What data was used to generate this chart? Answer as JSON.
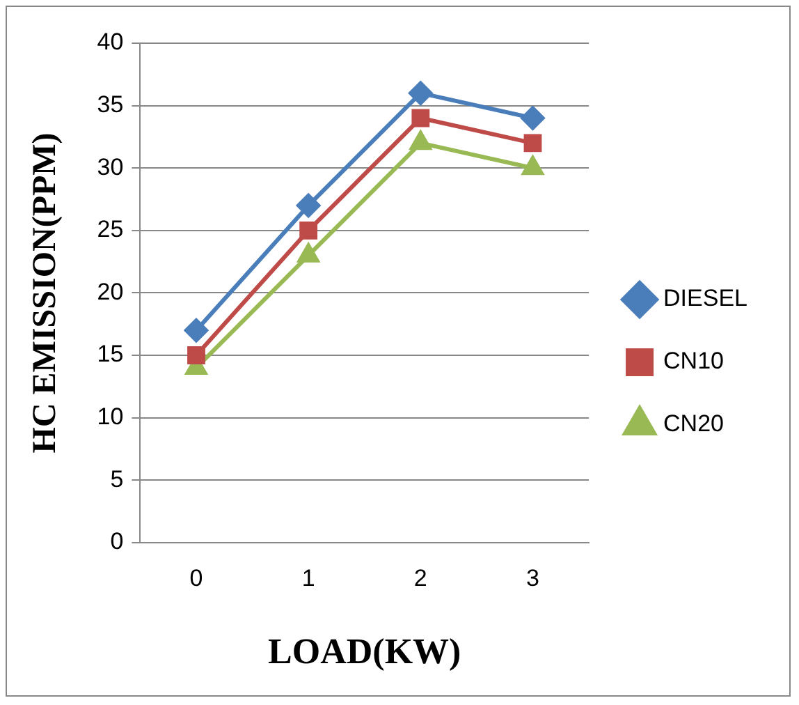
{
  "chart_data": {
    "type": "line",
    "xlabel": "LOAD(KW)",
    "ylabel": "HC EMISSION(PPM)",
    "categories": [
      "0",
      "1",
      "2",
      "3"
    ],
    "series": [
      {
        "name": "DIESEL",
        "color": "#4a7ebb",
        "marker": "diamond",
        "values": [
          17,
          27,
          36,
          34
        ]
      },
      {
        "name": "CN10",
        "color": "#be4b48",
        "marker": "square",
        "values": [
          15,
          25,
          34,
          32
        ]
      },
      {
        "name": "CN20",
        "color": "#98b954",
        "marker": "triangle",
        "values": [
          14,
          23,
          32,
          30
        ]
      }
    ],
    "ylim": [
      0,
      40
    ],
    "yticks": [
      0,
      5,
      10,
      15,
      20,
      25,
      30,
      35,
      40
    ],
    "grid": "y",
    "legend": "right"
  }
}
